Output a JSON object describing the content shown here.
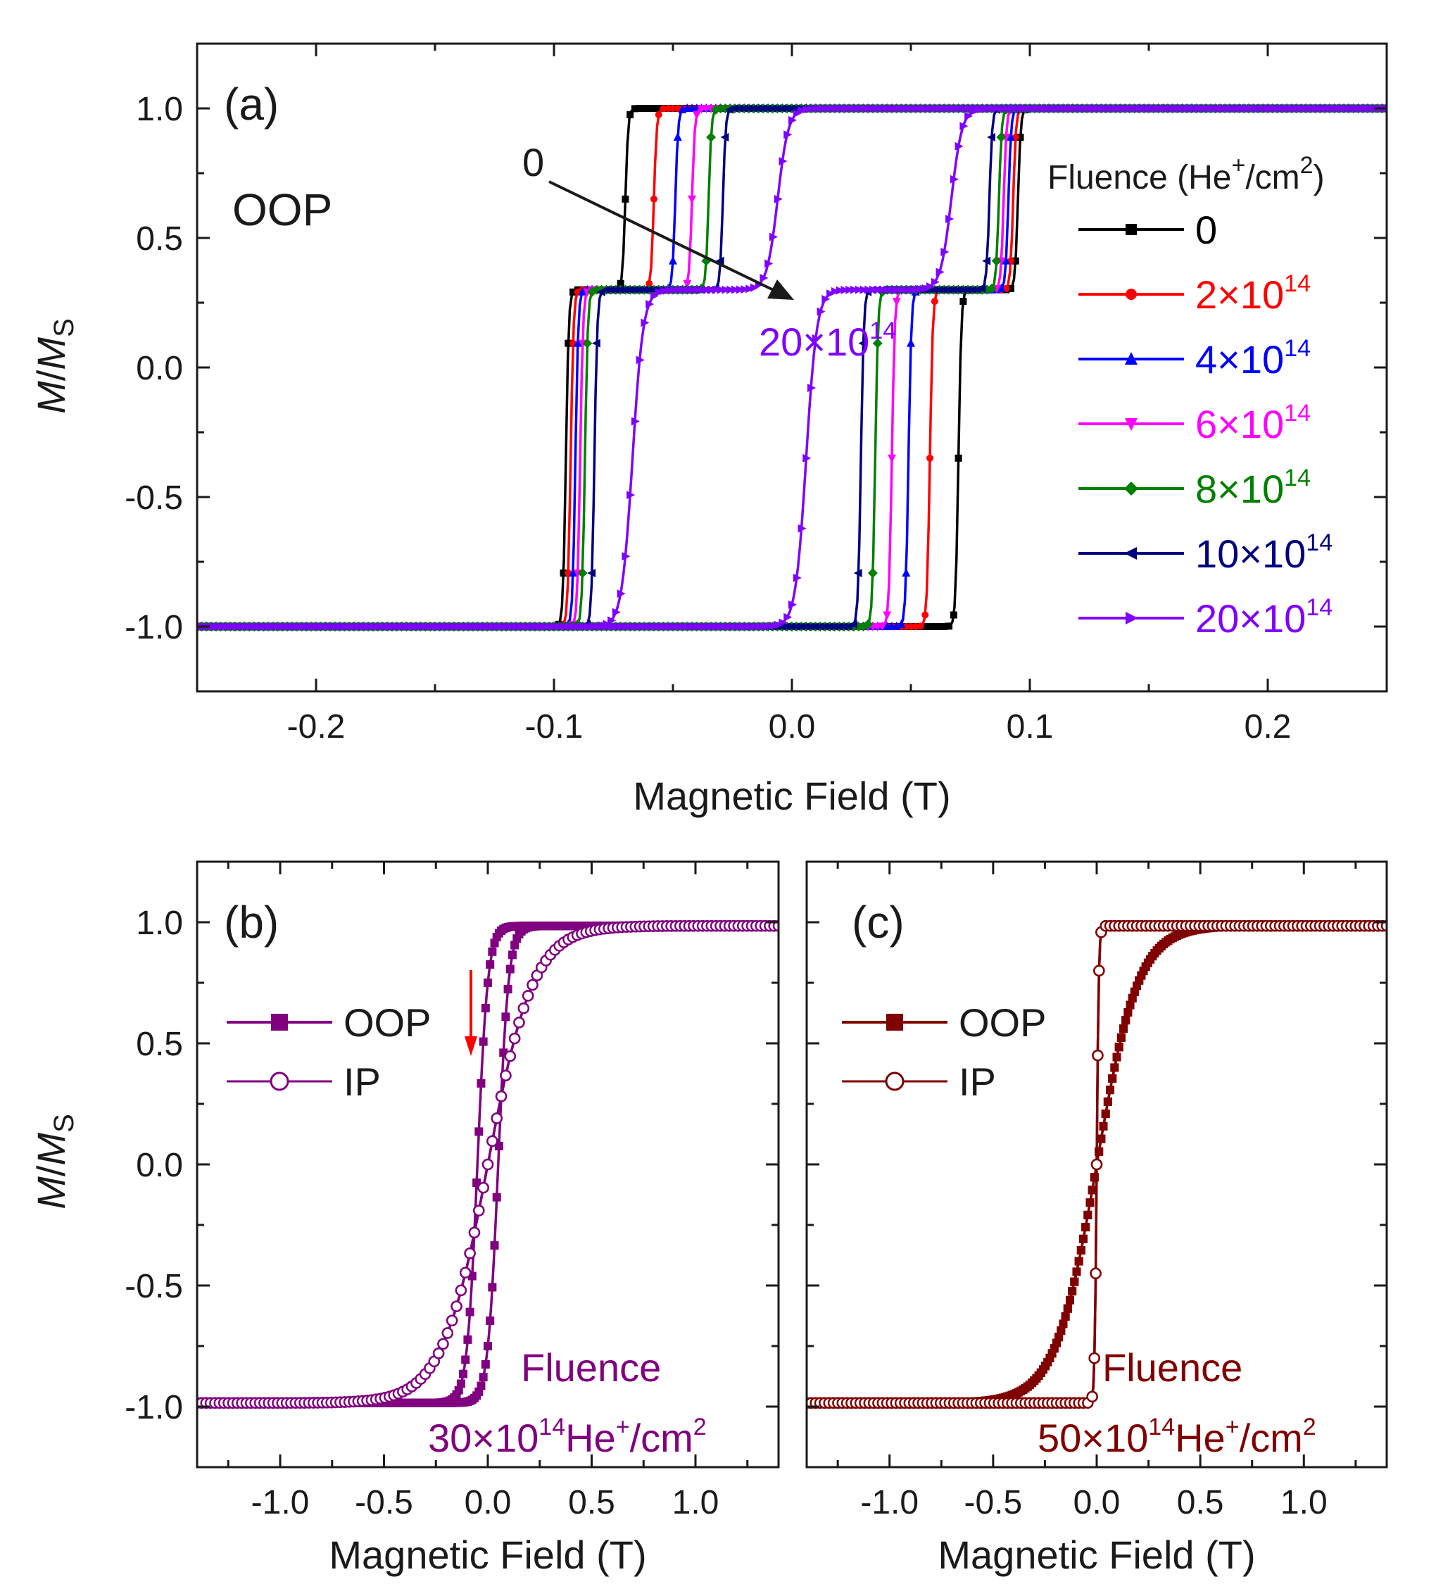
{
  "figure": {
    "panel_a": {
      "label": "(a)",
      "mode_label": "OOP",
      "xlabel": "Magnetic Field (T)",
      "ylabel_main": "M",
      "ylabel_sub": "S",
      "legend_title": "Fluence (He",
      "legend_title_sup": "+",
      "legend_title_mid": "/cm",
      "legend_title_sup2": "2",
      "legend_title_end": ")",
      "arrow_start_label": "0",
      "arrow_end_label": "20×10",
      "arrow_end_sup": "14"
    },
    "panel_b": {
      "label": "(b)",
      "xlabel": "Magnetic Field (T)",
      "ylabel_main": "M",
      "ylabel_sub": "S",
      "fluence_word": "Fluence",
      "fluence_value": "30×10",
      "fluence_sup": "14",
      "fluence_unit": "He",
      "fluence_unit_sup": "+",
      "fluence_unit_end": "/cm",
      "fluence_unit_sup2": "2",
      "legend": [
        "OOP",
        "IP"
      ]
    },
    "panel_c": {
      "label": "(c)",
      "xlabel": "Magnetic Field (T)",
      "fluence_word": "Fluence",
      "fluence_value": "50×10",
      "fluence_sup": "14",
      "fluence_unit": "He",
      "fluence_unit_sup": "+",
      "fluence_unit_end": "/cm",
      "fluence_unit_sup2": "2",
      "legend": [
        "OOP",
        "IP"
      ]
    }
  },
  "chart_data": [
    {
      "type": "line",
      "panel": "a",
      "title": "",
      "xlabel": "Magnetic Field (T)",
      "ylabel": "M/MS",
      "xlim": [
        -0.25,
        0.25
      ],
      "ylim": [
        -1.25,
        1.25
      ],
      "xticks": [
        -0.2,
        -0.1,
        0.0,
        0.1,
        0.2
      ],
      "xtick_labels": [
        "-0.2",
        "-0.1",
        "0.0",
        "0.1",
        "0.2"
      ],
      "yticks": [
        -1.0,
        -0.5,
        0.0,
        0.5,
        1.0
      ],
      "ytick_labels": [
        "-1.0",
        "-0.5",
        "0.0",
        "0.5",
        "1.0"
      ],
      "legend_placement": "right",
      "series": [
        {
          "name": "0",
          "sup": "",
          "color": "#000000",
          "marker": "square",
          "hc_low": 0.07,
          "hc_high": 0.095
        },
        {
          "name": "2×10",
          "sup": "14",
          "color": "#ff0000",
          "marker": "circle",
          "hc_low": 0.058,
          "hc_high": 0.093
        },
        {
          "name": "4×10",
          "sup": "14",
          "color": "#0000ff",
          "marker": "triangle-up",
          "hc_low": 0.049,
          "hc_high": 0.091
        },
        {
          "name": "6×10",
          "sup": "14",
          "color": "#ff00ff",
          "marker": "triangle-down",
          "hc_low": 0.042,
          "hc_high": 0.089
        },
        {
          "name": "8×10",
          "sup": "14",
          "color": "#008000",
          "marker": "diamond",
          "hc_low": 0.035,
          "hc_high": 0.087
        },
        {
          "name": "10×10",
          "sup": "14",
          "color": "#000080",
          "marker": "triangle-left",
          "hc_low": 0.029,
          "hc_high": 0.083
        },
        {
          "name": "20×10",
          "sup": "14",
          "color": "#8000ff",
          "marker": "triangle-right",
          "hc_low": 0.006,
          "hc_high": 0.067
        }
      ],
      "plateau_level": 0.3
    },
    {
      "type": "line",
      "panel": "b",
      "xlabel": "Magnetic Field (T)",
      "ylabel": "M/MS",
      "xlim": [
        -1.4,
        1.4
      ],
      "ylim": [
        -1.25,
        1.25
      ],
      "xticks": [
        -1.0,
        -0.5,
        0.0,
        0.5,
        1.0
      ],
      "xtick_labels": [
        "-1.0",
        "-0.5",
        "0.0",
        "0.5",
        "1.0"
      ],
      "yticks": [
        -1.0,
        -0.5,
        0.0,
        0.5,
        1.0
      ],
      "ytick_labels": [
        "-1.0",
        "-0.5",
        "0.0",
        "0.5",
        "1.0"
      ],
      "color": "#800080",
      "series": [
        {
          "name": "OOP",
          "marker": "filled-square",
          "coercivity": 0.05,
          "width": 0.05
        },
        {
          "name": "IP",
          "marker": "open-circle",
          "coercivity": 0.0,
          "width": 0.22
        }
      ]
    },
    {
      "type": "line",
      "panel": "c",
      "xlabel": "Magnetic Field (T)",
      "xlim": [
        -1.4,
        1.4
      ],
      "ylim": [
        -1.25,
        1.25
      ],
      "xticks": [
        -1.0,
        -0.5,
        0.0,
        0.5,
        1.0
      ],
      "xtick_labels": [
        "-1.0",
        "-0.5",
        "0.0",
        "0.5",
        "1.0"
      ],
      "yticks": [
        -1.0,
        -0.5,
        0.0,
        0.5,
        1.0
      ],
      "color": "#800000",
      "series": [
        {
          "name": "OOP",
          "marker": "filled-square",
          "coercivity": 0.0,
          "width": 0.2
        },
        {
          "name": "IP",
          "marker": "open-circle",
          "coercivity": 0.0,
          "width": 0.01
        }
      ]
    }
  ]
}
